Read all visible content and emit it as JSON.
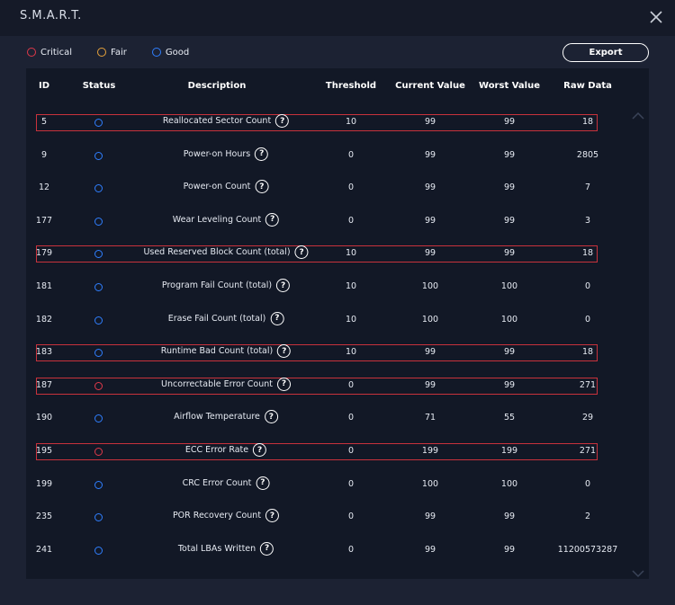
{
  "window": {
    "title": "S.M.A.R.T."
  },
  "legend": [
    {
      "label": "Critical",
      "color": "#e0394a"
    },
    {
      "label": "Fair",
      "color": "#e8a33b"
    },
    {
      "label": "Good",
      "color": "#2f7fff"
    }
  ],
  "toolbar": {
    "export_label": "Export"
  },
  "table": {
    "columns": {
      "id": "ID",
      "status": "Status",
      "description": "Description",
      "threshold": "Threshold",
      "current": "Current Value",
      "worst": "Worst Value",
      "raw": "Raw Data"
    },
    "rows": [
      {
        "id": "5",
        "status": "good",
        "description": "Reallocated Sector Count",
        "threshold": "10",
        "current": "99",
        "worst": "99",
        "raw": "18",
        "highlighted": true
      },
      {
        "id": "9",
        "status": "good",
        "description": "Power-on Hours",
        "threshold": "0",
        "current": "99",
        "worst": "99",
        "raw": "2805",
        "highlighted": false
      },
      {
        "id": "12",
        "status": "good",
        "description": "Power-on Count",
        "threshold": "0",
        "current": "99",
        "worst": "99",
        "raw": "7",
        "highlighted": false
      },
      {
        "id": "177",
        "status": "good",
        "description": "Wear Leveling Count",
        "threshold": "0",
        "current": "99",
        "worst": "99",
        "raw": "3",
        "highlighted": false
      },
      {
        "id": "179",
        "status": "good",
        "description": "Used Reserved Block Count (total)",
        "threshold": "10",
        "current": "99",
        "worst": "99",
        "raw": "18",
        "highlighted": true
      },
      {
        "id": "181",
        "status": "good",
        "description": "Program Fail Count (total)",
        "threshold": "10",
        "current": "100",
        "worst": "100",
        "raw": "0",
        "highlighted": false
      },
      {
        "id": "182",
        "status": "good",
        "description": "Erase Fail Count (total)",
        "threshold": "10",
        "current": "100",
        "worst": "100",
        "raw": "0",
        "highlighted": false
      },
      {
        "id": "183",
        "status": "good",
        "description": "Runtime Bad Count (total)",
        "threshold": "10",
        "current": "99",
        "worst": "99",
        "raw": "18",
        "highlighted": true
      },
      {
        "id": "187",
        "status": "critical",
        "description": "Uncorrectable Error Count",
        "threshold": "0",
        "current": "99",
        "worst": "99",
        "raw": "271",
        "highlighted": true
      },
      {
        "id": "190",
        "status": "good",
        "description": "Airflow Temperature",
        "threshold": "0",
        "current": "71",
        "worst": "55",
        "raw": "29",
        "highlighted": false
      },
      {
        "id": "195",
        "status": "critical",
        "description": "ECC Error Rate",
        "threshold": "0",
        "current": "199",
        "worst": "199",
        "raw": "271",
        "highlighted": true
      },
      {
        "id": "199",
        "status": "good",
        "description": "CRC Error Count",
        "threshold": "0",
        "current": "100",
        "worst": "100",
        "raw": "0",
        "highlighted": false
      },
      {
        "id": "235",
        "status": "good",
        "description": "POR Recovery Count",
        "threshold": "0",
        "current": "99",
        "worst": "99",
        "raw": "2",
        "highlighted": false
      },
      {
        "id": "241",
        "status": "good",
        "description": "Total LBAs Written",
        "threshold": "0",
        "current": "99",
        "worst": "99",
        "raw": "11200573287",
        "highlighted": false
      }
    ]
  }
}
